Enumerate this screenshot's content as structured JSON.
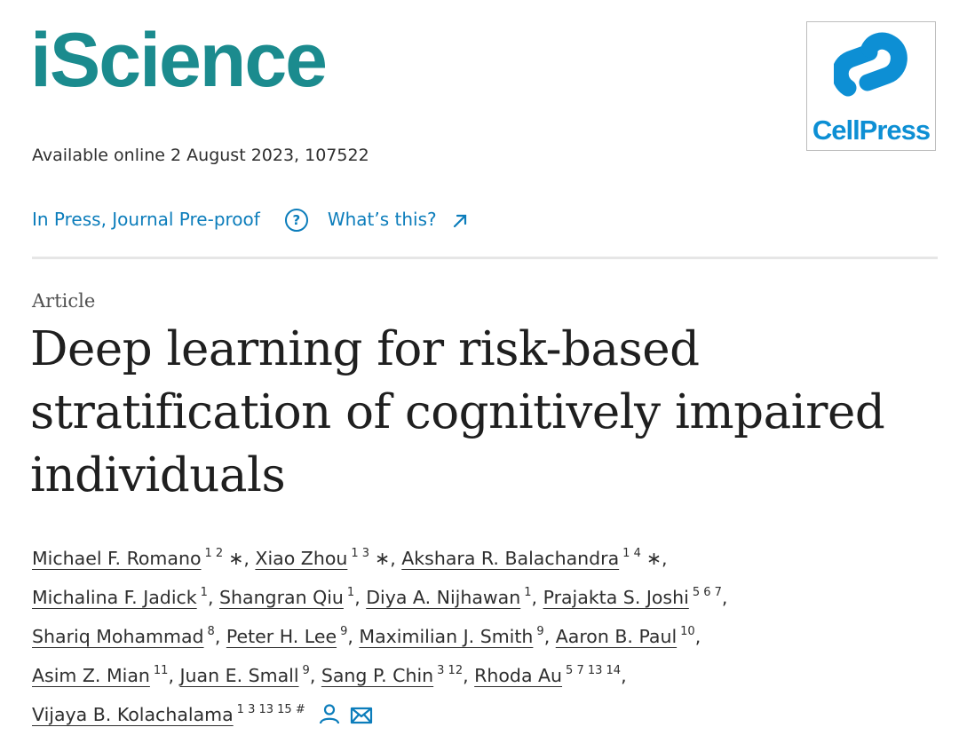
{
  "header": {
    "journal_name": "iScience",
    "journal_color": "#1b8b8e",
    "publisher_text": "CellPress",
    "publisher_color": "#0d8fd4",
    "availability": "Available online 2 August 2023, 107522"
  },
  "status_bar": {
    "status": "In Press, Journal Pre-proof",
    "help_icon": "question-circle-icon",
    "help_glyph": "?",
    "help_link": "What’s this?",
    "external_icon": "external-link-icon",
    "link_color": "#0c7dbb"
  },
  "article": {
    "type": "Article",
    "title": "Deep learning for risk-based stratification of cognitively impaired individuals"
  },
  "author_lines": [
    [
      {
        "name": "Michael F. Romano",
        "aff": "1 2",
        "star": "∗",
        "sep": ", "
      },
      {
        "name": "Xiao Zhou",
        "aff": "1 3",
        "star": "∗",
        "sep": ", "
      },
      {
        "name": "Akshara R. Balachandra",
        "aff": "1 4",
        "star": "∗",
        "sep": ","
      }
    ],
    [
      {
        "name": "Michalina F. Jadick",
        "aff": "1",
        "sep": ", "
      },
      {
        "name": "Shangran Qiu",
        "aff": "1",
        "sep": ", "
      },
      {
        "name": "Diya A. Nijhawan",
        "aff": "1",
        "sep": ", "
      },
      {
        "name": "Prajakta S. Joshi",
        "aff": "5 6 7",
        "sep": ","
      }
    ],
    [
      {
        "name": "Shariq Mohammad",
        "aff": "8",
        "sep": ", "
      },
      {
        "name": "Peter H. Lee",
        "aff": "9",
        "sep": ", "
      },
      {
        "name": "Maximilian J. Smith",
        "aff": "9",
        "sep": ", "
      },
      {
        "name": "Aaron B. Paul",
        "aff": "10",
        "sep": ","
      }
    ],
    [
      {
        "name": "Asim Z. Mian",
        "aff": "11",
        "sep": ", "
      },
      {
        "name": "Juan E. Small",
        "aff": "9",
        "sep": ", "
      },
      {
        "name": "Sang P. Chin",
        "aff": "3 12",
        "sep": ", "
      },
      {
        "name": "Rhoda Au",
        "aff": "5 7 13 14",
        "sep": ","
      }
    ],
    [
      {
        "name": "Vijaya B. Kolachalama",
        "aff": "1 3 13 15 #",
        "sep": "",
        "icons": [
          "person-icon",
          "email-icon"
        ]
      }
    ]
  ]
}
